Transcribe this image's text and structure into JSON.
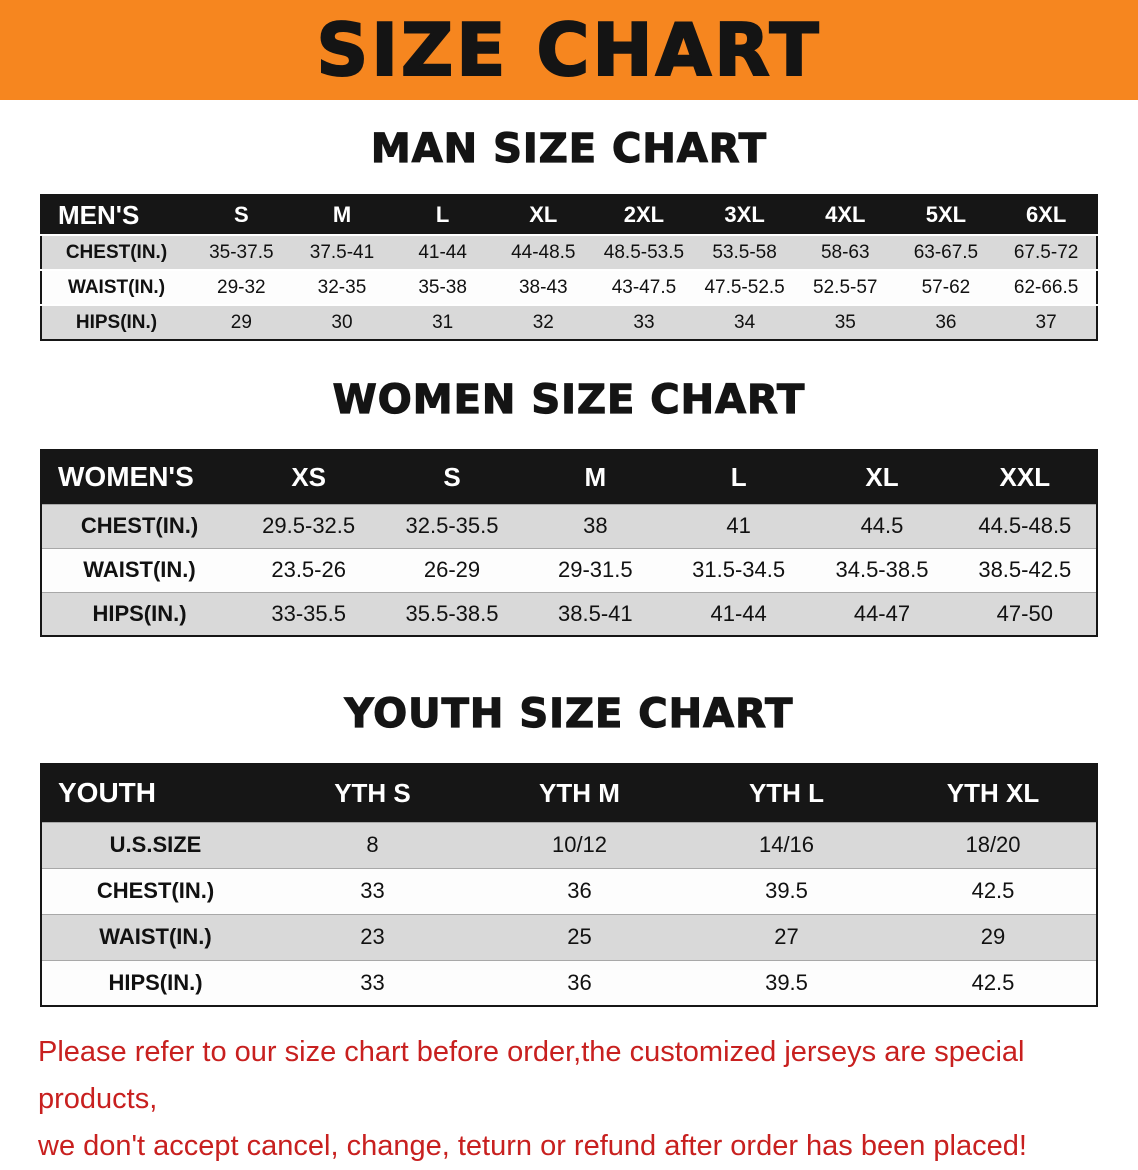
{
  "banner": {
    "title": "SIZE CHART",
    "bg_color": "#f6861f",
    "text_color": "#141414"
  },
  "sections": [
    {
      "id": "men",
      "heading": "MAN SIZE CHART",
      "table": {
        "header": [
          "MEN'S",
          "S",
          "M",
          "L",
          "XL",
          "2XL",
          "3XL",
          "4XL",
          "5XL",
          "6XL"
        ],
        "rows": [
          {
            "label": "CHEST(IN.)",
            "values": [
              "35-37.5",
              "37.5-41",
              "41-44",
              "44-48.5",
              "48.5-53.5",
              "53.5-58",
              "58-63",
              "63-67.5",
              "67.5-72"
            ]
          },
          {
            "label": "WAIST(IN.)",
            "values": [
              "29-32",
              "32-35",
              "35-38",
              "38-43",
              "43-47.5",
              "47.5-52.5",
              "52.5-57",
              "57-62",
              "62-66.5"
            ]
          },
          {
            "label": "HIPS(IN.)",
            "values": [
              "29",
              "30",
              "31",
              "32",
              "33",
              "34",
              "35",
              "36",
              "37"
            ]
          }
        ]
      }
    },
    {
      "id": "women",
      "heading": "WOMEN SIZE CHART",
      "table": {
        "header": [
          "WOMEN'S",
          "XS",
          "S",
          "M",
          "L",
          "XL",
          "XXL"
        ],
        "rows": [
          {
            "label": "CHEST(IN.)",
            "values": [
              "29.5-32.5",
              "32.5-35.5",
              "38",
              "41",
              "44.5",
              "44.5-48.5"
            ]
          },
          {
            "label": "WAIST(IN.)",
            "values": [
              "23.5-26",
              "26-29",
              "29-31.5",
              "31.5-34.5",
              "34.5-38.5",
              "38.5-42.5"
            ]
          },
          {
            "label": "HIPS(IN.)",
            "values": [
              "33-35.5",
              "35.5-38.5",
              "38.5-41",
              "41-44",
              "44-47",
              "47-50"
            ]
          }
        ]
      }
    },
    {
      "id": "youth",
      "heading": "YOUTH SIZE CHART",
      "table": {
        "header": [
          "YOUTH",
          "YTH S",
          "YTH M",
          "YTH L",
          "YTH XL"
        ],
        "rows": [
          {
            "label": "U.S.SIZE",
            "values": [
              "8",
              "10/12",
              "14/16",
              "18/20"
            ]
          },
          {
            "label": "CHEST(IN.)",
            "values": [
              "33",
              "36",
              "39.5",
              "42.5"
            ]
          },
          {
            "label": "WAIST(IN.)",
            "values": [
              "23",
              "25",
              "27",
              "29"
            ]
          },
          {
            "label": "HIPS(IN.)",
            "values": [
              "33",
              "36",
              "39.5",
              "42.5"
            ]
          }
        ]
      }
    }
  ],
  "footer": {
    "line1": "Please refer to our size chart before order,the customized jerseys are special products,",
    "line2": "we don't accept cancel, change, teturn or refund after order has been placed!",
    "text_color": "#c8201f",
    "row_shade_color": "#d9d9d9",
    "header_bg_color": "#161616"
  }
}
